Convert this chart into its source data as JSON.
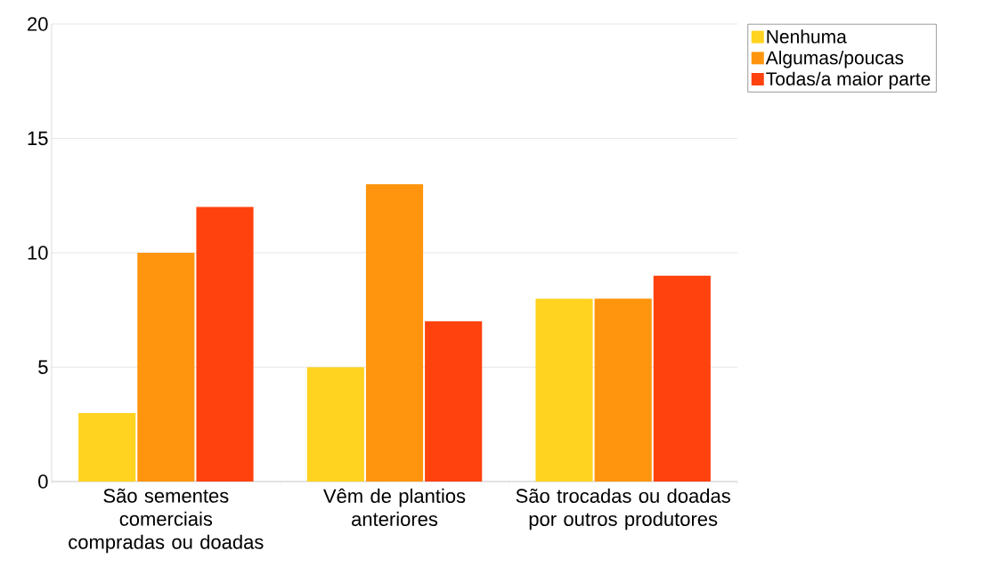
{
  "chart_data": {
    "type": "bar",
    "categories": [
      "São sementes comerciais compradas ou doadas",
      "Vêm de plantios anteriores",
      "São trocadas ou doadas por outros produtores"
    ],
    "series": [
      {
        "name": "Nenhuma",
        "color": "#ffd320",
        "values": [
          3,
          5,
          8
        ]
      },
      {
        "name": "Algumas/poucas",
        "color": "#ff950e",
        "values": [
          10,
          13,
          8
        ]
      },
      {
        "name": "Todas/a maior parte",
        "color": "#ff420e",
        "values": [
          12,
          7,
          9
        ]
      }
    ],
    "ylim": [
      0,
      20
    ],
    "yticks": [
      0,
      5,
      10,
      15,
      20
    ],
    "grid": "y",
    "legend": "top right"
  }
}
